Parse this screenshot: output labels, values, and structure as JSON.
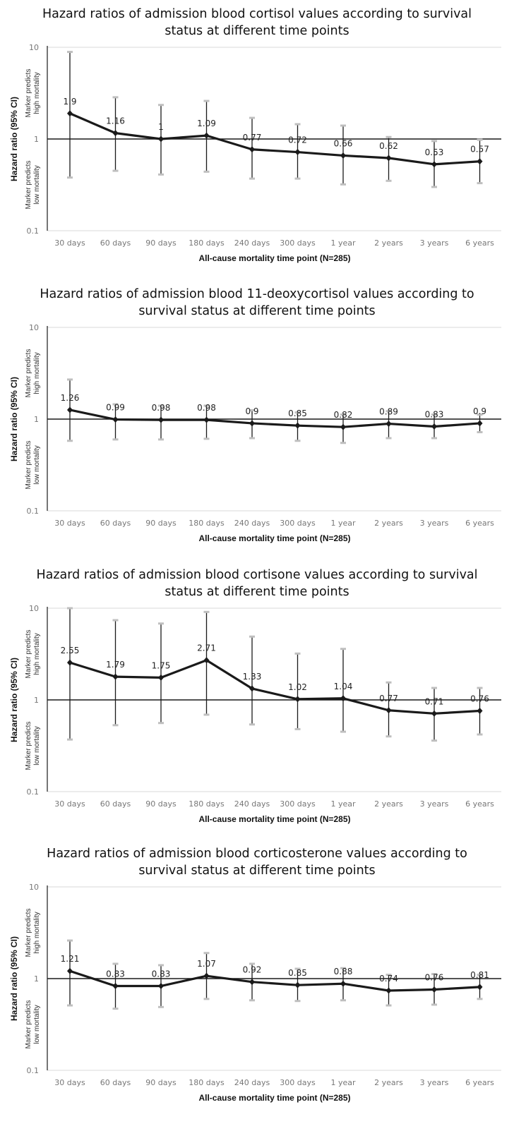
{
  "chart_data": [
    {
      "type": "line",
      "title": [
        "Hazard ratios of admission blood cortisol values according to survival",
        "status at different time points"
      ],
      "xlabel": "All-cause mortality time point (N=285)",
      "ylabel": "Hazard ratio (95% CI)",
      "upper_note": [
        "Marker predicts",
        "high mortality"
      ],
      "lower_note": [
        "Marker predicts",
        "low mortality"
      ],
      "yscale": "log",
      "ylim": [
        0.1,
        10
      ],
      "yticks": [
        "0.1",
        "1",
        "10"
      ],
      "categories": [
        "30 days",
        "60 days",
        "90 days",
        "180 days",
        "240 days",
        "300 days",
        "1 year",
        "2 years",
        "3 years",
        "6 years"
      ],
      "values": [
        1.9,
        1.16,
        1,
        1.09,
        0.77,
        0.72,
        0.66,
        0.62,
        0.53,
        0.57
      ],
      "value_labels": [
        "1.9",
        "1.16",
        "1",
        "1.09",
        "0.77",
        "0.72",
        "0.66",
        "0.62",
        "0.53",
        "0.57"
      ],
      "ci_lower": [
        0.38,
        0.45,
        0.41,
        0.44,
        0.37,
        0.37,
        0.32,
        0.35,
        0.3,
        0.33
      ],
      "ci_upper": [
        8.9,
        2.85,
        2.35,
        2.6,
        1.7,
        1.45,
        1.4,
        1.05,
        0.95,
        0.98
      ]
    },
    {
      "type": "line",
      "title": [
        "Hazard ratios of admission blood 11-deoxycortisol values according to",
        "survival status at different time points"
      ],
      "xlabel": "All-cause mortality time point (N=285)",
      "ylabel": "Hazard ratio (95% CI)",
      "upper_note": [
        "Marker predicts",
        "high mortality"
      ],
      "lower_note": [
        "Marker predicts",
        "low mortality"
      ],
      "yscale": "log",
      "ylim": [
        0.1,
        10
      ],
      "yticks": [
        "0.1",
        "1",
        "10"
      ],
      "categories": [
        "30 days",
        "60 days",
        "90 days",
        "180 days",
        "240 days",
        "300 days",
        "1 year",
        "2 years",
        "3 years",
        "6 years"
      ],
      "values": [
        1.26,
        0.99,
        0.98,
        0.98,
        0.9,
        0.85,
        0.82,
        0.89,
        0.83,
        0.9
      ],
      "value_labels": [
        "1.26",
        "0.99",
        "0.98",
        "0.98",
        "0.9",
        "0.85",
        "0.82",
        "0.89",
        "0.83",
        "0.9"
      ],
      "ci_lower": [
        0.58,
        0.6,
        0.6,
        0.61,
        0.62,
        0.58,
        0.55,
        0.62,
        0.62,
        0.72
      ],
      "ci_upper": [
        2.7,
        1.45,
        1.4,
        1.4,
        1.25,
        1.18,
        1.12,
        1.22,
        1.12,
        1.12
      ]
    },
    {
      "type": "line",
      "title": [
        "Hazard ratios of admission blood cortisone values according to survival",
        "status at different time points"
      ],
      "xlabel": "All-cause mortality time point (N=285)",
      "ylabel": "Hazard ratio (95% CI)",
      "upper_note": [
        "Marker predicts",
        "high mortality"
      ],
      "lower_note": [
        "Marker predicts",
        "low mortality"
      ],
      "yscale": "log",
      "ylim": [
        0.1,
        10
      ],
      "yticks": [
        "0.1",
        "1",
        "10"
      ],
      "categories": [
        "30 days",
        "60 days",
        "90 days",
        "180 days",
        "240 days",
        "300 days",
        "1 year",
        "2 years",
        "3 years",
        "6 years"
      ],
      "values": [
        2.55,
        1.79,
        1.75,
        2.71,
        1.33,
        1.02,
        1.04,
        0.77,
        0.71,
        0.76
      ],
      "value_labels": [
        "2.55",
        "1.79",
        "1.75",
        "2.71",
        "1.33",
        "1.02",
        "1.04",
        "0.77",
        "0.71",
        "0.76"
      ],
      "ci_lower": [
        0.37,
        0.53,
        0.56,
        0.69,
        0.54,
        0.48,
        0.45,
        0.4,
        0.36,
        0.42
      ],
      "ci_upper": [
        10,
        7.4,
        6.8,
        9.1,
        4.9,
        3.2,
        3.6,
        1.55,
        1.35,
        1.35
      ]
    },
    {
      "type": "line",
      "title": [
        "Hazard ratios of admission blood corticosterone values according to",
        "survival status at different time points"
      ],
      "xlabel": "All-cause mortality time point (N=285)",
      "ylabel": "Hazard ratio (95% CI)",
      "upper_note": [
        "Marker predicts",
        "high mortality"
      ],
      "lower_note": [
        "Marker predicts",
        "low mortality"
      ],
      "yscale": "log",
      "ylim": [
        0.1,
        10
      ],
      "yticks": [
        "0.1",
        "1",
        "10"
      ],
      "categories": [
        "30 days",
        "60 days",
        "90 days",
        "180 days",
        "240 days",
        "300 days",
        "1 year",
        "2 years",
        "3 years",
        "6 years"
      ],
      "values": [
        1.21,
        0.83,
        0.83,
        1.07,
        0.92,
        0.85,
        0.88,
        0.74,
        0.76,
        0.81
      ],
      "value_labels": [
        "1.21",
        "0.83",
        "0.83",
        "1.07",
        "0.92",
        "0.85",
        "0.88",
        "0.74",
        "0.76",
        "0.81"
      ],
      "ci_lower": [
        0.51,
        0.47,
        0.49,
        0.6,
        0.58,
        0.57,
        0.58,
        0.51,
        0.52,
        0.6
      ],
      "ci_upper": [
        2.6,
        1.45,
        1.4,
        1.9,
        1.45,
        1.28,
        1.3,
        1.1,
        1.12,
        1.1
      ]
    }
  ],
  "colors": {
    "line": "#1a1a1a",
    "cap": "#bfbfbf",
    "axis": "#1a1a1a",
    "gridline": "#d9d9d9",
    "tick_text": "#777777"
  }
}
